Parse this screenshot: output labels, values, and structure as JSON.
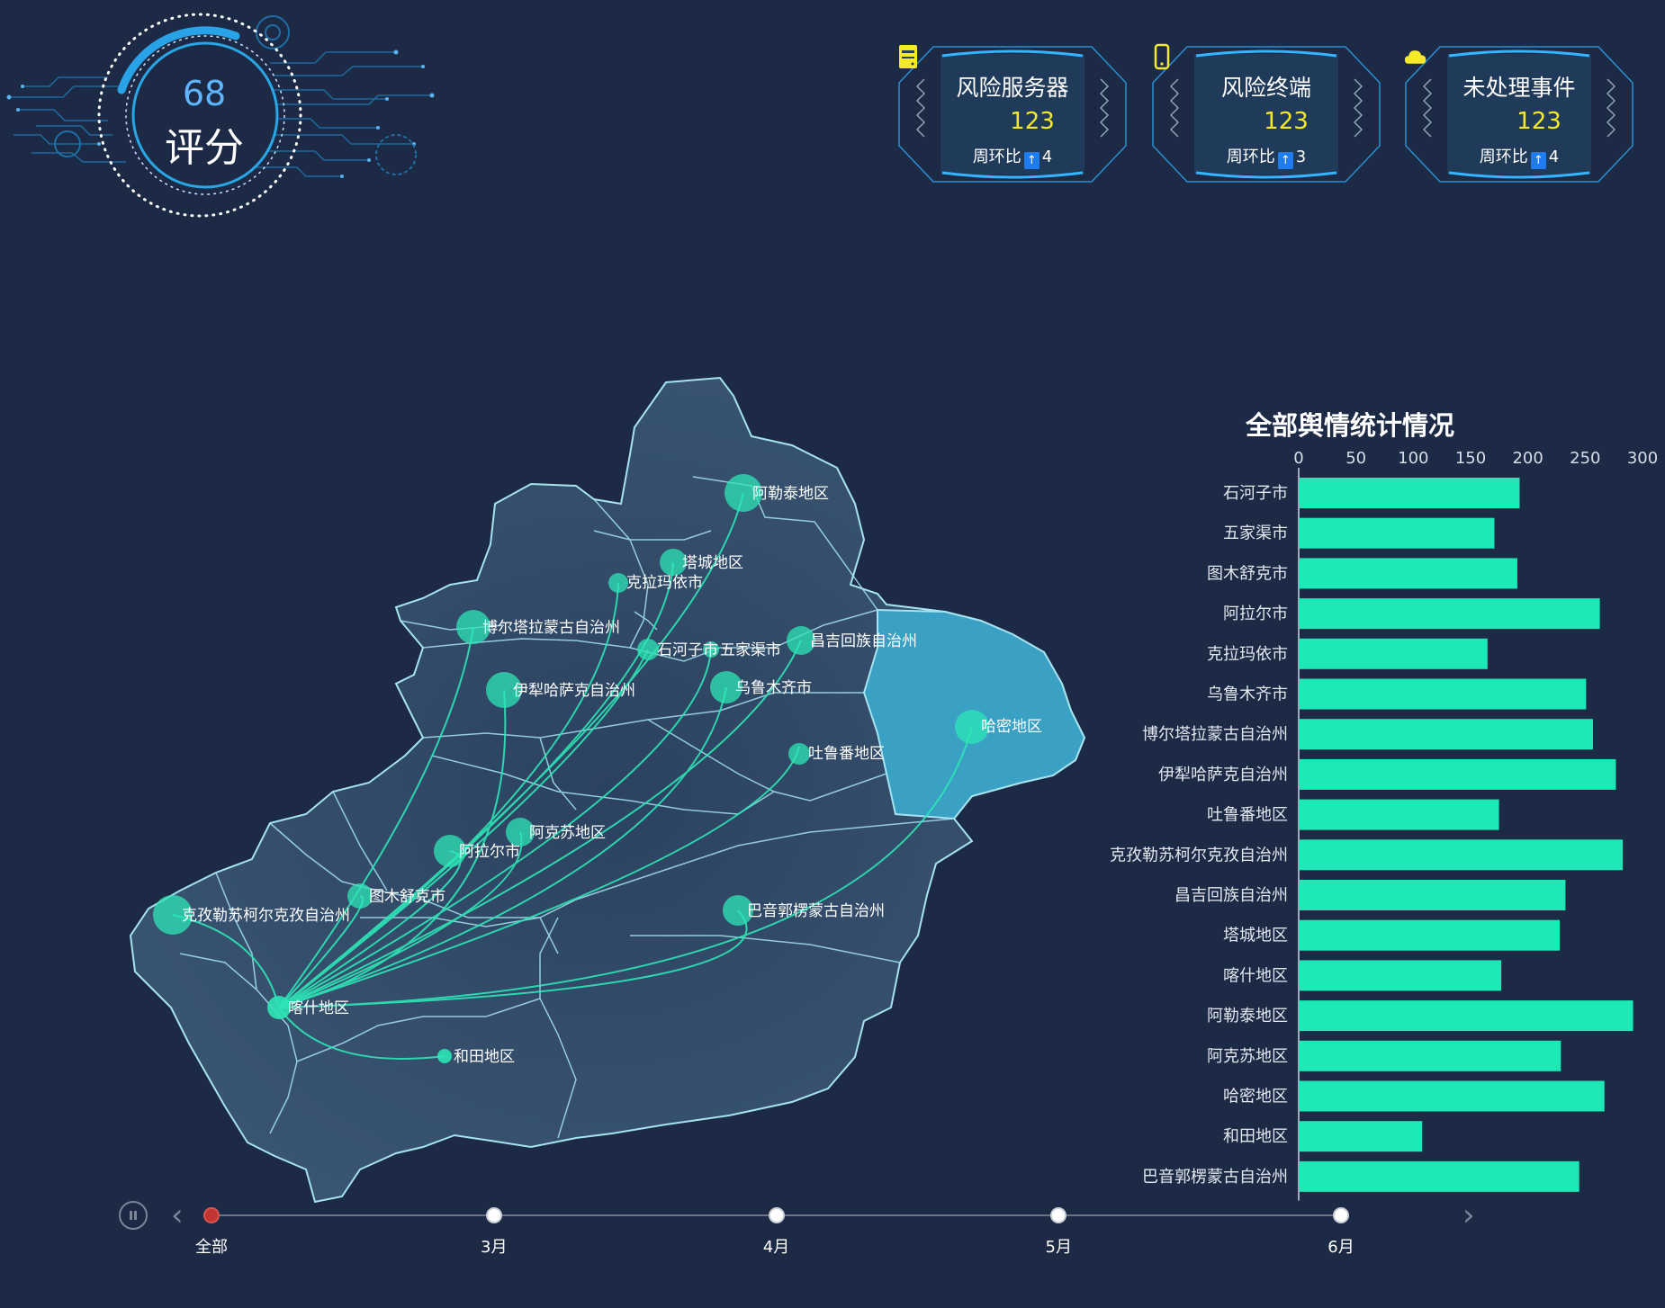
{
  "score": {
    "value": "68",
    "label": "评分"
  },
  "stats": [
    {
      "title": "风险服务器",
      "icon": "server-icon",
      "value": "123",
      "trend_label": "周环比",
      "trend_icon": "arrow-up-icon",
      "trend_value": "4"
    },
    {
      "title": "风险终端",
      "icon": "phone-icon",
      "value": "123",
      "trend_label": "周环比",
      "trend_icon": "arrow-up-icon",
      "trend_value": "3"
    },
    {
      "title": "未处理事件",
      "icon": "cloud-icon",
      "value": "123",
      "trend_label": "周环比",
      "trend_icon": "arrow-up-icon",
      "trend_value": "4"
    }
  ],
  "map": {
    "source": "喀什地区",
    "highlight_region": "哈密地区",
    "regions": [
      "阿勒泰地区",
      "塔城地区",
      "克拉玛依市",
      "博尔塔拉蒙古自治州",
      "石河子市",
      "五家渠市",
      "昌吉回族自治州",
      "伊犁哈萨克自治州",
      "乌鲁木齐市",
      "哈密地区",
      "吐鲁番地区",
      "阿克苏地区",
      "阿拉尔市",
      "图木舒克市",
      "克孜勒苏柯尔克孜自治州",
      "巴音郭楞蒙古自治州",
      "喀什地区",
      "和田地区"
    ],
    "colors": {
      "land": "#34506c",
      "highlight": "#3aa0c4",
      "border": "#a6e3f0",
      "flow": "#2ee6b7"
    }
  },
  "chart_data": {
    "type": "bar",
    "orientation": "horizontal",
    "title": "全部舆情统计情况",
    "categories": [
      "石河子市",
      "五家渠市",
      "图木舒克市",
      "阿拉尔市",
      "克拉玛依市",
      "乌鲁木齐市",
      "博尔塔拉蒙古自治州",
      "伊犁哈萨克自治州",
      "吐鲁番地区",
      "克孜勒苏柯尔克孜自治州",
      "昌吉回族自治州",
      "塔城地区",
      "喀什地区",
      "阿勒泰地区",
      "阿克苏地区",
      "哈密地区",
      "和田地区",
      "巴音郭楞蒙古自治州"
    ],
    "values": [
      192,
      170,
      190,
      262,
      164,
      250,
      256,
      276,
      174,
      282,
      232,
      227,
      176,
      291,
      228,
      266,
      107,
      244
    ],
    "xlim": [
      0,
      300
    ],
    "xticks": [
      0,
      50,
      100,
      150,
      200,
      250,
      300
    ],
    "bar_color": "#1de9b6",
    "grid": false
  },
  "timeline": {
    "items": [
      "全部",
      "3月",
      "4月",
      "5月",
      "6月"
    ],
    "active_index": 0
  }
}
